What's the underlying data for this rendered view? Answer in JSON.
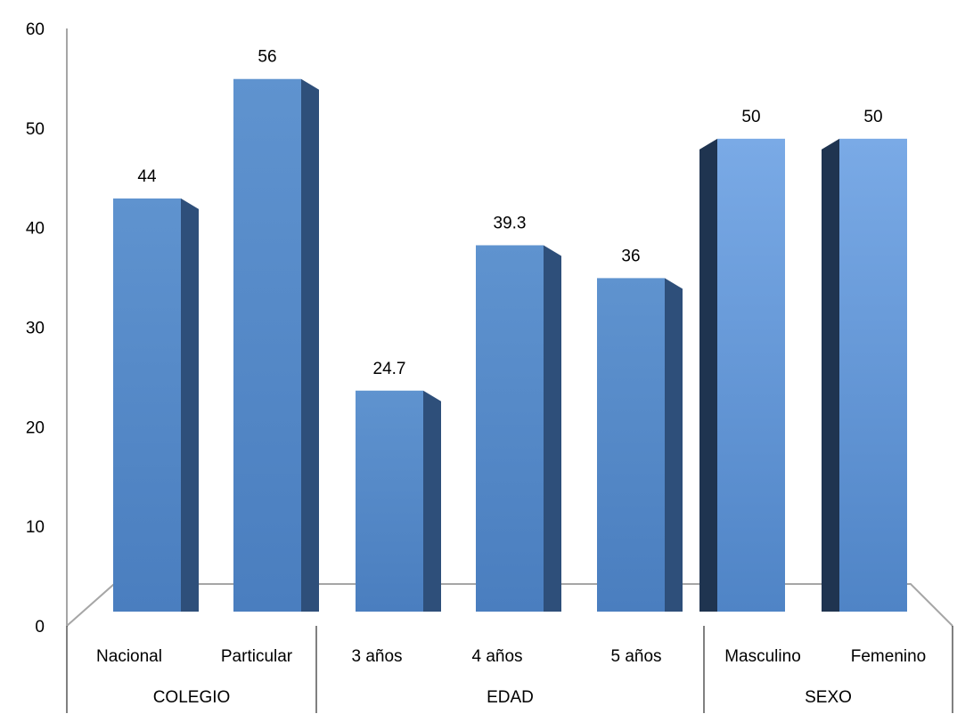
{
  "chart_data": {
    "type": "bar",
    "title": "",
    "xlabel": "",
    "ylabel": "",
    "ylim": [
      0,
      60
    ],
    "yticks": [
      0,
      10,
      20,
      30,
      40,
      50,
      60
    ],
    "grid": false,
    "legend": "none",
    "categories": [
      "Nacional",
      "Particular",
      "3 años",
      "4 años",
      "5 años",
      "Masculino",
      "Femenino"
    ],
    "values": [
      44,
      56,
      24.7,
      39.3,
      36,
      50,
      50
    ],
    "data_labels": [
      "44",
      "56",
      "24.7",
      "39.3",
      "36",
      "50",
      "50"
    ],
    "groups": [
      {
        "name": "COLEGIO",
        "categories": [
          "Nacional",
          "Particular"
        ]
      },
      {
        "name": "EDAD",
        "categories": [
          "3 años",
          "4 años",
          "5 años"
        ]
      },
      {
        "name": "SEXO",
        "categories": [
          "Masculino",
          "Femenino"
        ]
      }
    ],
    "colors": {
      "bar_front": "#4f81bd",
      "bar_front_light": "#6a9ed8",
      "bar_side": "#2e4f7a",
      "bar_side_dark": "#1f3450",
      "axis": "#a6a6a6"
    }
  }
}
